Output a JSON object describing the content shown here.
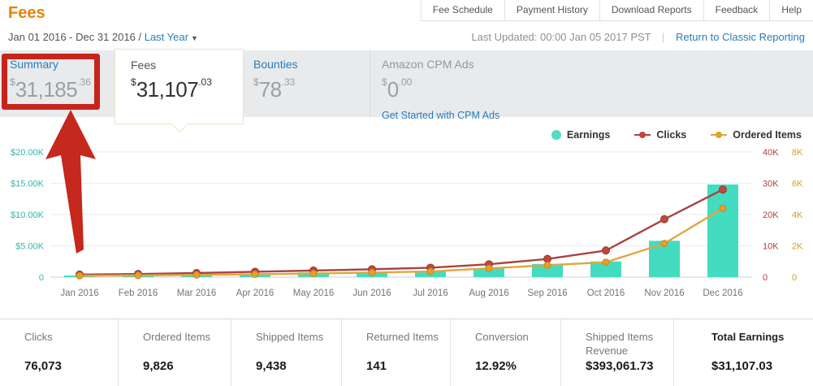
{
  "page_title": "Fees",
  "nav": {
    "items": [
      "Fee Schedule",
      "Payment History",
      "Download Reports",
      "Feedback",
      "Help"
    ]
  },
  "subheader": {
    "date_range": "Jan 01 2016 - Dec 31 2016",
    "separator": "/",
    "range_selector": "Last Year",
    "caret": "▼",
    "last_updated": "Last Updated: 00:00 Jan 05 2017 PST",
    "divider": "|",
    "classic_link": "Return to Classic Reporting"
  },
  "tabs": [
    {
      "label": "Summary",
      "currency": "$",
      "whole": "31,185",
      "cents": ".36"
    },
    {
      "label": "Fees",
      "currency": "$",
      "whole": "31,107",
      "cents": ".03",
      "selected": true
    },
    {
      "label": "Bounties",
      "currency": "$",
      "whole": "78",
      "cents": ".33"
    },
    {
      "label": "Amazon CPM Ads",
      "currency": "$",
      "whole": "0",
      "cents": ".00",
      "cta": "Get Started with CPM Ads"
    }
  ],
  "annotation": {
    "shape": "box-and-arrow",
    "color": "#c5281c",
    "highlights": "Summary tab"
  },
  "chart_data": {
    "type": "bar+line combo",
    "categories": [
      "Jan 2016",
      "Feb 2016",
      "Mar 2016",
      "Apr 2016",
      "May 2016",
      "Jun 2016",
      "Jul 2016",
      "Aug 2016",
      "Sep 2016",
      "Oct 2016",
      "Nov 2016",
      "Dec 2016"
    ],
    "series": [
      {
        "name": "Earnings",
        "type": "bar",
        "axis": "left",
        "color": "#43dcc1",
        "values": [
          250,
          350,
          420,
          600,
          750,
          850,
          950,
          1400,
          2100,
          2500,
          5800,
          14800
        ]
      },
      {
        "name": "Clicks",
        "type": "line",
        "axis": "right1",
        "color": "#a94442",
        "marker": "#c2473a",
        "marker_edge": "#8e3a2e",
        "values": [
          800,
          1000,
          1300,
          1700,
          2100,
          2500,
          3000,
          4100,
          5800,
          8500,
          18500,
          28000
        ]
      },
      {
        "name": "Ordered Items",
        "type": "line",
        "axis": "right2",
        "color": "#e2a63d",
        "marker": "#e5a02a",
        "marker_edge": "#c9881a",
        "values": [
          90,
          110,
          140,
          180,
          230,
          290,
          360,
          560,
          760,
          950,
          2150,
          4400
        ]
      }
    ],
    "axes": {
      "left": {
        "labels": [
          "$20.00K",
          "$15.00K",
          "$10.00K",
          "$5.00K",
          "0"
        ],
        "max": 20000,
        "color": "#35b5aa"
      },
      "right1": {
        "labels": [
          "40K",
          "30K",
          "20K",
          "10K",
          "0"
        ],
        "max": 40000,
        "color": "#b0413e"
      },
      "right2": {
        "labels": [
          "8K",
          "6K",
          "4K",
          "2K",
          "0"
        ],
        "max": 8000,
        "color": "#d89c28"
      }
    },
    "legend": [
      {
        "label": "Earnings",
        "color": "#56dcc3",
        "shape": "circle"
      },
      {
        "label": "Clicks",
        "color": "#c2473a",
        "line_color": "#a94442",
        "shape": "line-dot"
      },
      {
        "label": "Ordered Items",
        "color": "#e5a02a",
        "line_color": "#e2a63d",
        "shape": "line-dot"
      }
    ],
    "legend_position": "top-right",
    "grid": true,
    "ylim_left": [
      0,
      20000
    ]
  },
  "stats": [
    {
      "label": "Clicks",
      "value": "76,073"
    },
    {
      "label": "Ordered Items",
      "value": "9,826"
    },
    {
      "label": "Shipped Items",
      "value": "9,438"
    },
    {
      "label": "Returned Items",
      "value": "141"
    },
    {
      "label": "Conversion",
      "value": "12.92%"
    },
    {
      "label": "Shipped Items Revenue",
      "value": "$393,061.73"
    },
    {
      "label": "Total Earnings",
      "value": "$31,107.03",
      "bold": true
    }
  ],
  "colors": {
    "brand_orange": "#e8820c",
    "link_blue": "#2a7cb8",
    "strip_bg": "#e8eaec",
    "bar_teal": "#43dcc1",
    "line_red": "#a94442",
    "line_orange": "#e2a63d",
    "annotation_red": "#c8241a"
  }
}
